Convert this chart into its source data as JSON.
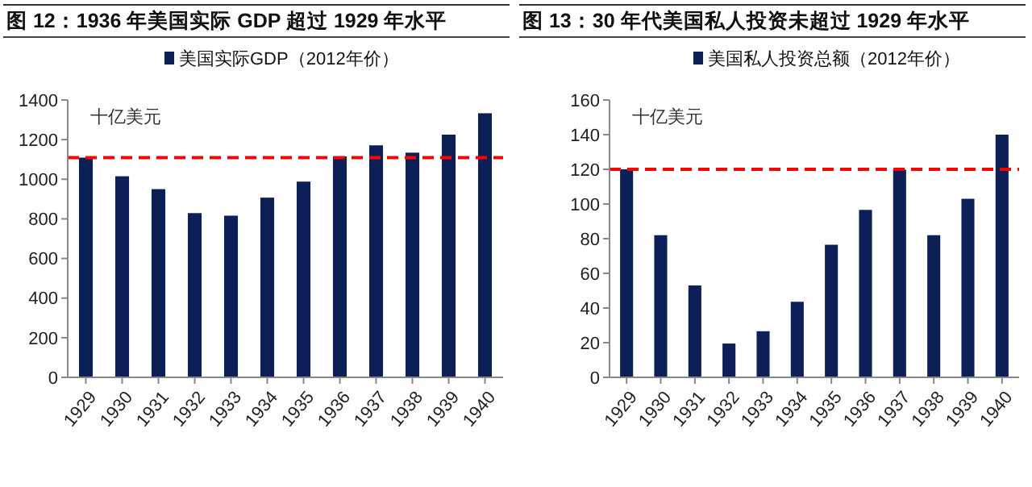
{
  "chart_data": [
    {
      "type": "bar",
      "title": "图 12：1936 年美国实际 GDP 超过 1929 年水平",
      "categories": [
        "1929",
        "1930",
        "1931",
        "1932",
        "1933",
        "1934",
        "1935",
        "1936",
        "1937",
        "1938",
        "1939",
        "1940"
      ],
      "series": [
        {
          "name": "美国实际GDP（2012年价）",
          "color": "#0c1f56",
          "values": [
            1109,
            1015,
            950,
            829,
            816,
            907,
            988,
            1115,
            1171,
            1134,
            1225,
            1333
          ]
        }
      ],
      "ylim": [
        0,
        1400
      ],
      "yticks": [
        0,
        200,
        400,
        600,
        800,
        1000,
        1200,
        1400
      ],
      "legend": "top",
      "grid": false,
      "annotations": [
        "十亿美元"
      ],
      "ref_lines": [
        {
          "axis": "y",
          "value": 1109,
          "color": "#ff0000",
          "line_style": "dashed"
        }
      ]
    },
    {
      "type": "bar",
      "title": "图 13：30 年代美国私人投资未超过 1929 年水平",
      "categories": [
        "1929",
        "1930",
        "1931",
        "1932",
        "1933",
        "1934",
        "1935",
        "1936",
        "1937",
        "1938",
        "1939",
        "1940"
      ],
      "series": [
        {
          "name": "美国私人投资总额（2012年价）",
          "color": "#0c1f56",
          "values": [
            120,
            82,
            53,
            19.5,
            26.6,
            43.6,
            76.5,
            96.6,
            119.8,
            82,
            103,
            140
          ]
        }
      ],
      "ylim": [
        0,
        160
      ],
      "yticks": [
        0,
        20,
        40,
        60,
        80,
        100,
        120,
        140,
        160
      ],
      "legend": "top",
      "grid": false,
      "annotations": [
        "十亿美元"
      ],
      "ref_lines": [
        {
          "axis": "y",
          "value": 120,
          "color": "#ff0000",
          "line_style": "dashed"
        }
      ]
    }
  ]
}
